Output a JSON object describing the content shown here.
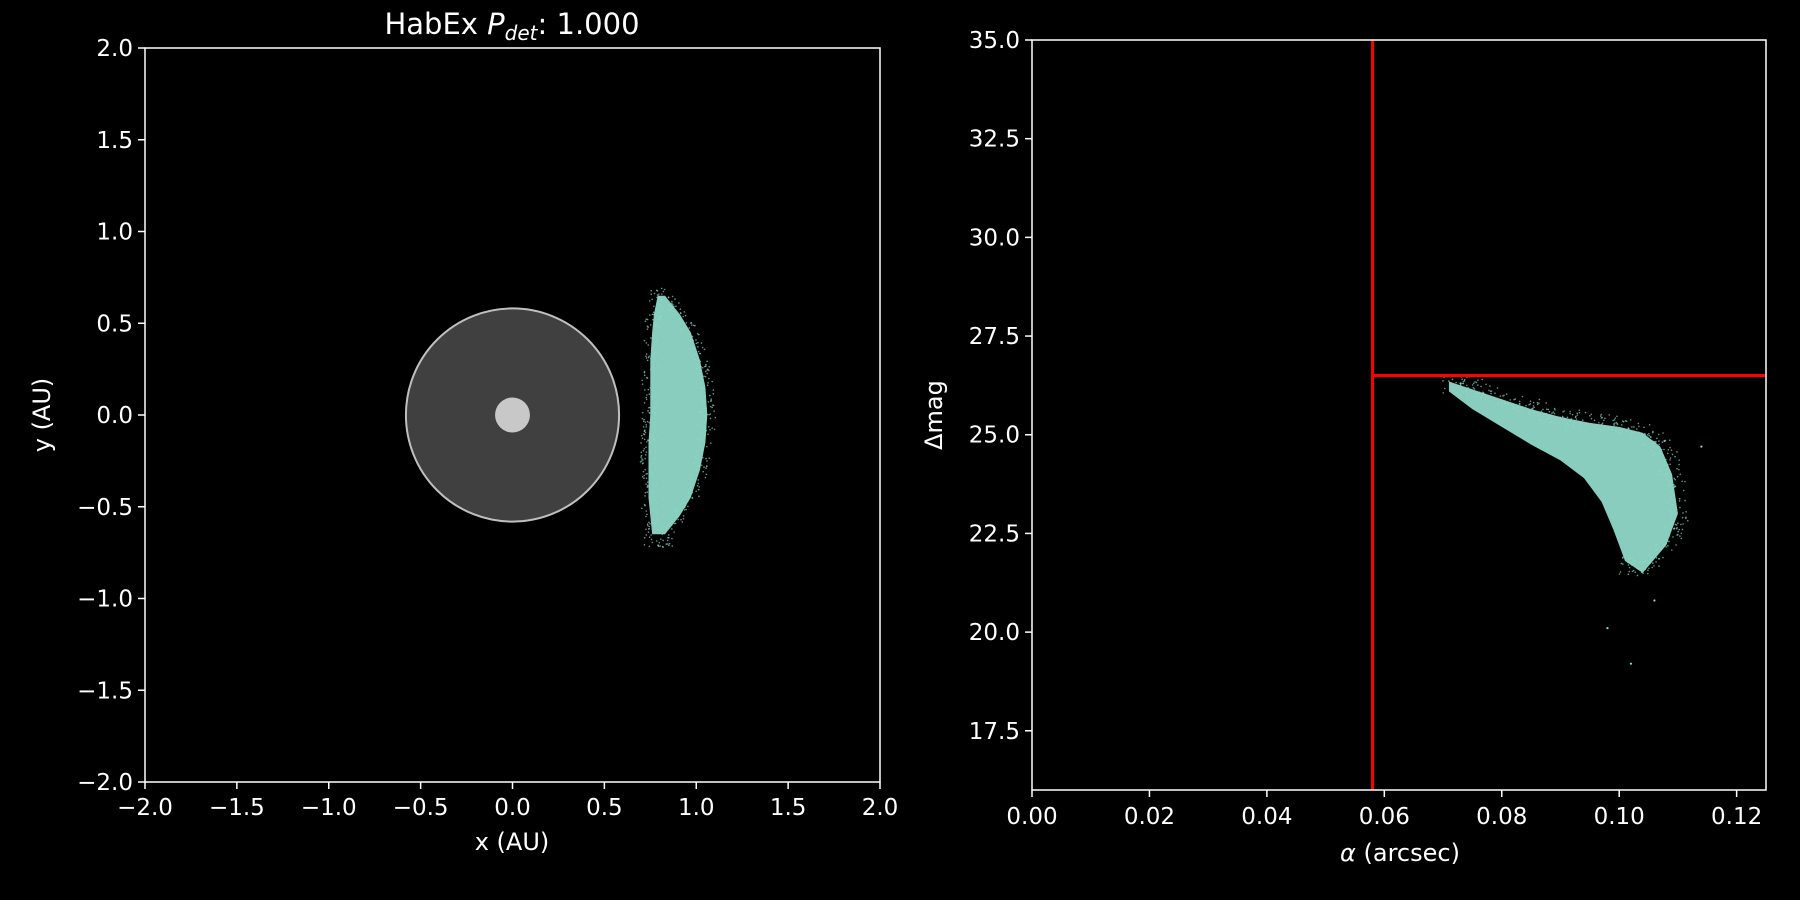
{
  "chart_data": [
    {
      "type": "scatter",
      "title_prefix": "HabEx ",
      "title_symbol": "P",
      "title_subscript": "det",
      "title_value": ": 1.000",
      "xlabel": "x (AU)",
      "ylabel": "y (AU)",
      "xlim": [
        -2.0,
        2.0
      ],
      "ylim": [
        -2.0,
        2.0
      ],
      "xticks": [
        -2.0,
        -1.5,
        -1.0,
        -0.5,
        0.0,
        0.5,
        1.0,
        1.5,
        2.0
      ],
      "yticks": [
        -2.0,
        -1.5,
        -1.0,
        -0.5,
        0.0,
        0.5,
        1.0,
        1.5,
        2.0
      ],
      "xtick_labels": [
        "−2.0",
        "−1.5",
        "−1.0",
        "−0.5",
        "0.0",
        "0.5",
        "1.0",
        "1.5",
        "2.0"
      ],
      "ytick_labels": [
        "−2.0",
        "−1.5",
        "−1.0",
        "−0.5",
        "0.0",
        "0.5",
        "1.0",
        "1.5",
        "2.0"
      ],
      "grid": false,
      "coronagraph_mask": {
        "center": [
          0.0,
          0.0
        ],
        "radius": 0.58,
        "color": "#404040",
        "edge_color": "#bfbfbf"
      },
      "star": {
        "center": [
          0.0,
          0.0
        ],
        "radius": 0.095,
        "color": "#c8c8c8"
      },
      "planet_cloud": {
        "color": "#8fd8c8",
        "y_range": [
          -0.72,
          0.7
        ],
        "x_edge": [
          [
            -0.65,
            0.76,
            0.83
          ],
          [
            -0.55,
            0.75,
            0.91
          ],
          [
            -0.45,
            0.74,
            0.97
          ],
          [
            -0.3,
            0.74,
            1.02
          ],
          [
            -0.15,
            0.74,
            1.05
          ],
          [
            0.0,
            0.75,
            1.06
          ],
          [
            0.15,
            0.75,
            1.05
          ],
          [
            0.3,
            0.75,
            1.02
          ],
          [
            0.45,
            0.76,
            0.97
          ],
          [
            0.55,
            0.77,
            0.91
          ],
          [
            0.65,
            0.79,
            0.83
          ]
        ]
      }
    },
    {
      "type": "scatter",
      "xlabel_symbol": "α",
      "xlabel_text": " (arcsec)",
      "ylabel": "Δmag",
      "xlim": [
        0.0,
        0.125
      ],
      "ylim": [
        16.0,
        35.0
      ],
      "xticks": [
        0.0,
        0.02,
        0.04,
        0.06,
        0.08,
        0.1,
        0.12
      ],
      "yticks": [
        17.5,
        20.0,
        22.5,
        25.0,
        27.5,
        30.0,
        32.5,
        35.0
      ],
      "xtick_labels": [
        "0.00",
        "0.02",
        "0.04",
        "0.06",
        "0.08",
        "0.10",
        "0.12"
      ],
      "ytick_labels": [
        "17.5",
        "20.0",
        "22.5",
        "25.0",
        "27.5",
        "30.0",
        "32.5",
        "35.0"
      ],
      "grid": false,
      "iwa_line": {
        "alpha": 0.058,
        "color": "#ff0000"
      },
      "dmag_limit_line": {
        "dmag": 26.5,
        "color": "#ff0000"
      },
      "planet_cloud": {
        "color": "#8fd8c8",
        "upper_edge": [
          [
            0.071,
            26.35
          ],
          [
            0.075,
            26.15
          ],
          [
            0.08,
            25.9
          ],
          [
            0.085,
            25.65
          ],
          [
            0.09,
            25.45
          ],
          [
            0.095,
            25.3
          ],
          [
            0.1,
            25.2
          ],
          [
            0.104,
            25.05
          ],
          [
            0.107,
            24.7
          ],
          [
            0.109,
            24.0
          ],
          [
            0.11,
            23.0
          ],
          [
            0.108,
            22.2
          ],
          [
            0.104,
            21.5
          ],
          [
            0.101,
            21.8
          ]
        ],
        "lower_edge": [
          [
            0.101,
            21.8
          ],
          [
            0.099,
            22.6
          ],
          [
            0.097,
            23.3
          ],
          [
            0.094,
            23.9
          ],
          [
            0.09,
            24.35
          ],
          [
            0.085,
            24.75
          ],
          [
            0.08,
            25.2
          ],
          [
            0.075,
            25.65
          ],
          [
            0.071,
            26.1
          ]
        ],
        "outliers": [
          [
            0.114,
            24.7
          ],
          [
            0.102,
            19.2
          ],
          [
            0.098,
            20.1
          ],
          [
            0.106,
            20.8
          ],
          [
            0.073,
            26.3
          ]
        ]
      }
    }
  ]
}
